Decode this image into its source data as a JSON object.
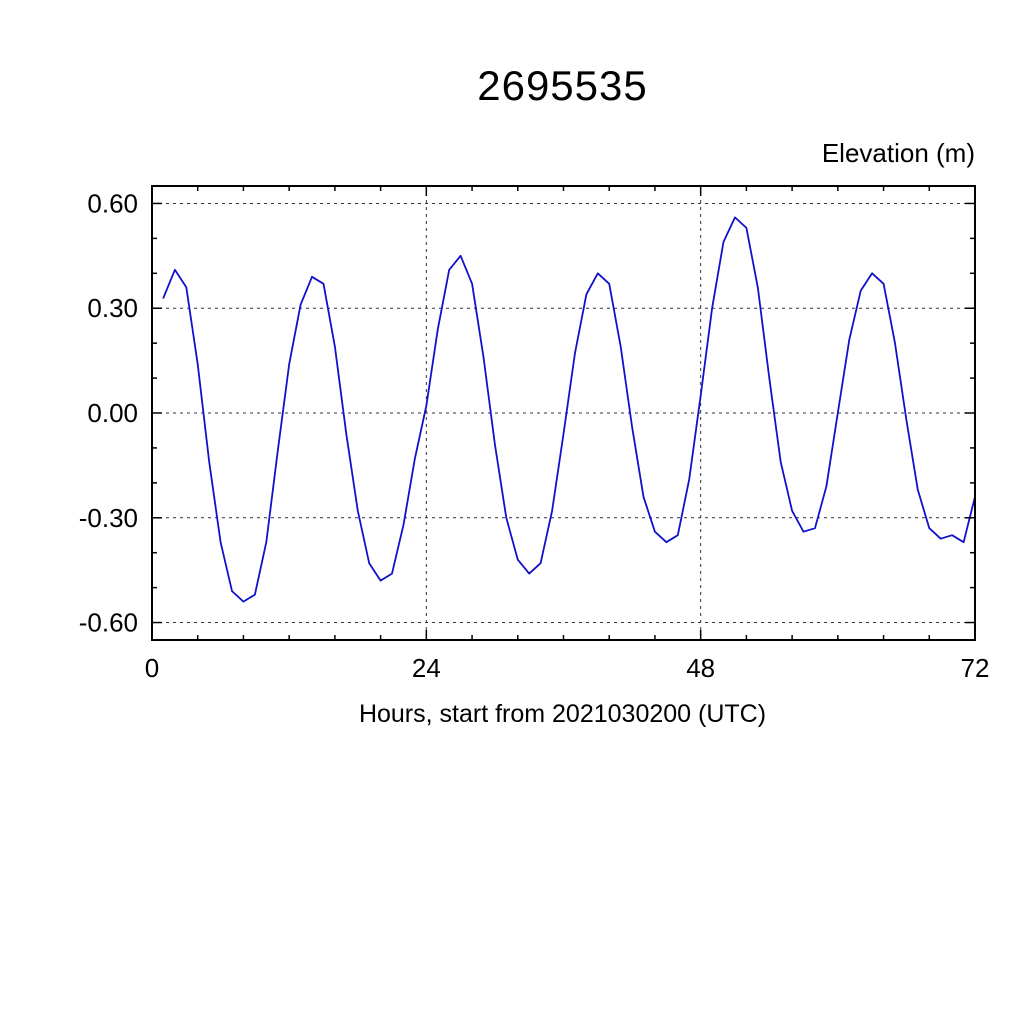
{
  "title": "2695535",
  "y_axis_title": "Elevation (m)",
  "x_axis_title": "Hours, start from 2021030200 (UTC)",
  "chart_data": {
    "type": "line",
    "title": "2695535",
    "ylabel": "Elevation (m)",
    "xlabel": "Hours, start from 2021030200 (UTC)",
    "xlim": [
      0,
      72
    ],
    "ylim": [
      -0.65,
      0.65
    ],
    "xticks": [
      0,
      24,
      48,
      72
    ],
    "xtick_labels": [
      "0",
      "24",
      "48",
      "72"
    ],
    "yticks": [
      0.6,
      0.3,
      0.0,
      -0.3,
      -0.6
    ],
    "ytick_labels": [
      "0.60",
      "0.30",
      "0.00",
      "-0.30",
      "-0.60"
    ],
    "x_minor_step": 4,
    "y_minor_step": 0.1,
    "grid": "dashed",
    "frame_color": "#000000",
    "series": [
      {
        "name": "elevation",
        "color": "#1111cc",
        "x": [
          1,
          2,
          3,
          4,
          5,
          6,
          7,
          8,
          9,
          10,
          11,
          12,
          13,
          14,
          15,
          16,
          17,
          18,
          19,
          20,
          21,
          22,
          23,
          24,
          25,
          26,
          27,
          28,
          29,
          30,
          31,
          32,
          33,
          34,
          35,
          36,
          37,
          38,
          39,
          40,
          41,
          42,
          43,
          44,
          45,
          46,
          47,
          48,
          49,
          50,
          51,
          52,
          53,
          54,
          55,
          56,
          57,
          58,
          59,
          60,
          61,
          62,
          63,
          64,
          65,
          66,
          67,
          68,
          69,
          70,
          71,
          72
        ],
        "y": [
          0.33,
          0.41,
          0.36,
          0.14,
          -0.14,
          -0.37,
          -0.51,
          -0.54,
          -0.52,
          -0.37,
          -0.11,
          0.14,
          0.31,
          0.39,
          0.37,
          0.19,
          -0.06,
          -0.28,
          -0.43,
          -0.48,
          -0.46,
          -0.32,
          -0.13,
          0.02,
          0.24,
          0.41,
          0.45,
          0.37,
          0.16,
          -0.09,
          -0.3,
          -0.42,
          -0.46,
          -0.43,
          -0.28,
          -0.06,
          0.17,
          0.34,
          0.4,
          0.37,
          0.19,
          -0.04,
          -0.24,
          -0.34,
          -0.37,
          -0.35,
          -0.19,
          0.05,
          0.3,
          0.49,
          0.56,
          0.53,
          0.36,
          0.1,
          -0.14,
          -0.28,
          -0.34,
          -0.33,
          -0.21,
          0.0,
          0.21,
          0.35,
          0.4,
          0.37,
          0.2,
          -0.02,
          -0.22,
          -0.33,
          -0.36,
          -0.35,
          -0.37,
          -0.24
        ]
      }
    ]
  }
}
